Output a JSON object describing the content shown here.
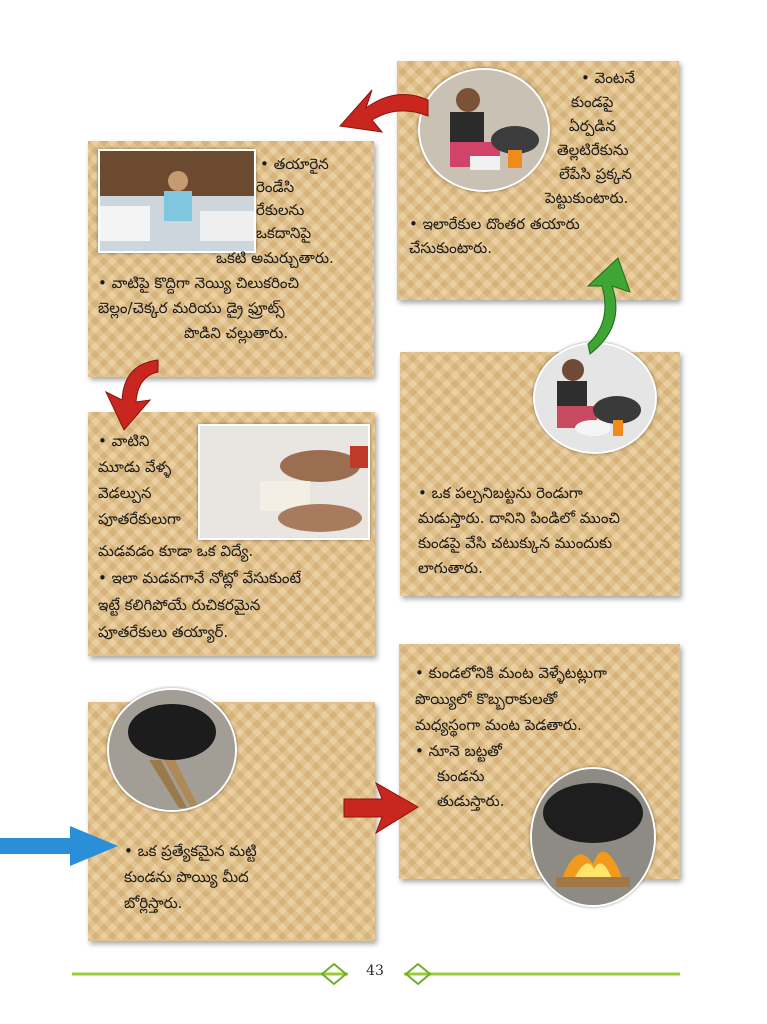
{
  "steps": {
    "step1": {
      "line1": "• ఒక ప్రత్యేకమైన మట్టి",
      "line2": "కుండను పొయ్యి మీద",
      "line3": "బోర్లిస్తారు."
    },
    "step2": {
      "l1": "• కుండలోనికి మంట వెళ్ళేటట్లుగా",
      "l2": "పొయ్యిలో కొబ్బరాకులతో",
      "l3": "మధ్యస్థంగా మంట పెడతారు.",
      "l4": "• నూనె బట్టతో",
      "l5": "కుండను",
      "l6": "తుడుస్తారు."
    },
    "step3": {
      "l1": "• ఒక పల్చనిబట్టను రెండుగా",
      "l2": "మడుస్తారు. దానిని పిండిలో ముంచి",
      "l3": "కుండపై వేసి చటుక్కున ముందుకు",
      "l4": "లాగుతారు."
    },
    "step4": {
      "l1": "• వెంటనే",
      "l2": "కుండపై",
      "l3": "ఏర్పడిన",
      "l4": "తెల్లటిరేకును",
      "l5": "లేపేసి ప్రక్కన",
      "l6": "పెట్టుకుంటారు.",
      "l7": "• ఇలారేకుల దొంతర తయారు",
      "l8": "చేసుకుంటారు."
    },
    "step5": {
      "l1": "• తయారైన",
      "l2": "రెండేసి",
      "l3": "రేకులను",
      "l4": "ఒకదానిపై",
      "l5": "ఒకటి అమర్చుతారు.",
      "l6": "• వాటిపై కొద్దిగా నెయ్యి చిలుకరించి",
      "l7": "బెల్లం/చెక్కర మరియు డ్రై ఫ్రూట్స్",
      "l8": "పొడిని చల్లుతారు."
    },
    "step6": {
      "l1": "• వాటిని",
      "l2": "మూడు వేళ్ళ",
      "l3": "వెడల్పున",
      "l4": "పూతరేకులుగా",
      "l5": "మడవడం కూడా ఒక విద్యే.",
      "l6": "• ఇలా మడవగానే నోట్లో వేసుకుంటే",
      "l7": "ఇట్టే కలిగిపోయే రుచికరమైన",
      "l8": "పూతరేకులు తయ్యార్."
    }
  },
  "footer": {
    "page_number": "43"
  },
  "colors": {
    "panel": "#e6c48a",
    "arrow_red": "#c8261e",
    "arrow_green": "#3fa535",
    "arrow_blue": "#2a8fd6",
    "footer_line": "#9ccb3b"
  }
}
